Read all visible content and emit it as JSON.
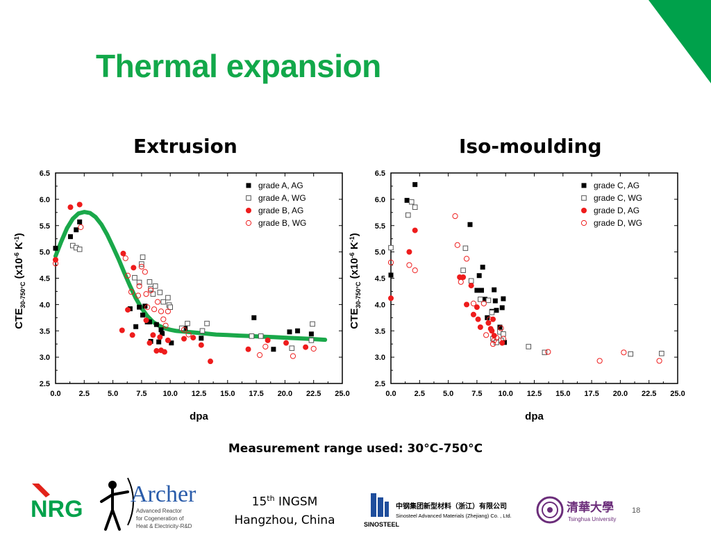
{
  "title": "Thermal expansion",
  "left_heading": "Extrusion",
  "right_heading": "Iso-moulding",
  "measurement_note": "Measurement range used: 30°C-750°C",
  "conference": {
    "line1_num": "15",
    "line1_sup": "th",
    "line1_rest": " INGSM",
    "line2": "Hangzhou, China"
  },
  "page_number": "18",
  "logos": {
    "nrg": "NRG",
    "archer": "Archer",
    "archer_tagline": [
      "Advanced Reactor",
      "for Cogeneration of",
      "Heat & Electricity-R&D"
    ],
    "sinosteel": "SINOSTEEL",
    "sinosteel_cn": "中钢集团新型材料（浙江）有限公司",
    "sinosteel_en": "Sinosteel Advanced Materials (Zhejiang) Co. , Ltd.",
    "tsinghua_cn": "清華大學",
    "tsinghua_en": "Tsinghua University"
  },
  "colors": {
    "title_green": "#12a84a",
    "corner_green": "#00a14b",
    "fit_green": "#1aa84a",
    "red": "#ee1c1c",
    "black": "#000000",
    "gray": "#555555"
  },
  "chart_data": [
    {
      "type": "scatter",
      "title": "Extrusion",
      "xlabel": "dpa",
      "ylabel": "CTE30-750°C (x10-6 K-1)",
      "xlim": [
        0,
        25
      ],
      "ylim": [
        2.5,
        6.5
      ],
      "xticks": [
        "0.0",
        "2.5",
        "5.0",
        "7.5",
        "10.0",
        "12.5",
        "15.0",
        "17.5",
        "20.0",
        "22.5",
        "25.0"
      ],
      "yticks": [
        "2.5",
        "3.0",
        "3.5",
        "4.0",
        "4.5",
        "5.0",
        "5.5",
        "6.0",
        "6.5"
      ],
      "legend_position": "top-right",
      "series": [
        {
          "name": "grade A, AG",
          "marker": "filled-square",
          "color": "#000000",
          "points": [
            [
              0,
              5.07
            ],
            [
              1.3,
              5.29
            ],
            [
              1.8,
              5.42
            ],
            [
              2.1,
              5.57
            ],
            [
              6.5,
              3.92
            ],
            [
              7.0,
              3.58
            ],
            [
              7.3,
              3.95
            ],
            [
              7.6,
              3.8
            ],
            [
              7.8,
              3.97
            ],
            [
              8.0,
              3.67
            ],
            [
              8.2,
              3.67
            ],
            [
              8.3,
              3.3
            ],
            [
              8.8,
              3.62
            ],
            [
              9.0,
              3.29
            ],
            [
              9.2,
              3.52
            ],
            [
              9.3,
              3.45
            ],
            [
              10.1,
              3.27
            ],
            [
              11.3,
              3.55
            ],
            [
              12.7,
              3.36
            ],
            [
              17.3,
              3.75
            ],
            [
              20.4,
              3.48
            ],
            [
              21.1,
              3.5
            ],
            [
              19.0,
              3.15
            ],
            [
              22.3,
              3.44
            ]
          ]
        },
        {
          "name": "grade A, WG",
          "marker": "open-square",
          "color": "#555555",
          "points": [
            [
              1.5,
              5.12
            ],
            [
              1.8,
              5.08
            ],
            [
              2.1,
              5.05
            ],
            [
              6.9,
              4.51
            ],
            [
              7.3,
              4.42
            ],
            [
              7.5,
              4.77
            ],
            [
              7.6,
              4.9
            ],
            [
              8.2,
              4.43
            ],
            [
              8.3,
              4.3
            ],
            [
              8.5,
              4.2
            ],
            [
              8.7,
              4.35
            ],
            [
              9.1,
              4.23
            ],
            [
              9.4,
              4.05
            ],
            [
              9.8,
              4.13
            ],
            [
              9.9,
              3.99
            ],
            [
              10.0,
              3.95
            ],
            [
              11.0,
              3.55
            ],
            [
              11.5,
              3.64
            ],
            [
              12.8,
              3.5
            ],
            [
              13.2,
              3.64
            ],
            [
              17.1,
              3.4
            ],
            [
              17.9,
              3.4
            ],
            [
              20.6,
              3.17
            ],
            [
              22.4,
              3.63
            ],
            [
              22.3,
              3.32
            ]
          ]
        },
        {
          "name": "grade B, AG",
          "marker": "filled-circle",
          "color": "#ee1c1c",
          "points": [
            [
              0,
              4.85
            ],
            [
              1.3,
              5.85
            ],
            [
              2.1,
              5.9
            ],
            [
              5.9,
              4.97
            ],
            [
              5.8,
              3.51
            ],
            [
              6.3,
              3.9
            ],
            [
              6.8,
              4.7
            ],
            [
              6.7,
              3.42
            ],
            [
              7.9,
              3.7
            ],
            [
              8.2,
              3.27
            ],
            [
              8.5,
              3.42
            ],
            [
              8.8,
              3.12
            ],
            [
              9.1,
              3.38
            ],
            [
              9.2,
              3.13
            ],
            [
              9.5,
              3.1
            ],
            [
              9.8,
              3.32
            ],
            [
              11.2,
              3.35
            ],
            [
              12.0,
              3.37
            ],
            [
              12.7,
              3.23
            ],
            [
              13.5,
              2.92
            ],
            [
              16.8,
              3.15
            ],
            [
              18.5,
              3.32
            ],
            [
              20.1,
              3.27
            ],
            [
              21.8,
              3.19
            ]
          ]
        },
        {
          "name": "grade B, WG",
          "marker": "open-circle",
          "color": "#ee1c1c",
          "points": [
            [
              0,
              4.78
            ],
            [
              2.2,
              5.47
            ],
            [
              6.1,
              4.88
            ],
            [
              6.3,
              4.55
            ],
            [
              6.6,
              4.24
            ],
            [
              7.2,
              4.17
            ],
            [
              7.3,
              4.35
            ],
            [
              7.5,
              4.72
            ],
            [
              7.8,
              4.62
            ],
            [
              7.9,
              4.2
            ],
            [
              8.0,
              3.95
            ],
            [
              8.3,
              4.27
            ],
            [
              8.6,
              3.91
            ],
            [
              8.9,
              4.05
            ],
            [
              9.2,
              3.87
            ],
            [
              9.4,
              3.72
            ],
            [
              9.6,
              3.6
            ],
            [
              9.8,
              3.87
            ],
            [
              11.2,
              3.52
            ],
            [
              11.6,
              3.43
            ],
            [
              17.8,
              3.04
            ],
            [
              18.3,
              3.2
            ],
            [
              20.7,
              3.02
            ],
            [
              22.5,
              3.16
            ]
          ]
        }
      ],
      "fit_curve": {
        "color": "#1aa84a",
        "x": [
          0,
          0.5,
          1,
          1.5,
          2,
          2.5,
          3,
          3.5,
          4,
          4.5,
          5,
          5.5,
          6,
          6.5,
          7,
          7.5,
          8,
          8.5,
          9,
          9.5,
          10,
          10.5,
          11,
          12,
          13,
          14,
          15,
          16,
          17,
          18,
          19,
          20,
          21,
          22,
          23.5
        ],
        "y": [
          4.92,
          5.2,
          5.45,
          5.63,
          5.73,
          5.76,
          5.74,
          5.66,
          5.52,
          5.33,
          5.1,
          4.86,
          4.6,
          4.35,
          4.12,
          3.93,
          3.78,
          3.67,
          3.6,
          3.55,
          3.52,
          3.5,
          3.49,
          3.47,
          3.45,
          3.43,
          3.42,
          3.41,
          3.4,
          3.39,
          3.38,
          3.37,
          3.36,
          3.35,
          3.33
        ]
      }
    },
    {
      "type": "scatter",
      "title": "Iso-moulding",
      "xlabel": "dpa",
      "ylabel": "CTE30-750°C (x10-6 K-1)",
      "xlim": [
        0,
        25
      ],
      "ylim": [
        2.5,
        6.5
      ],
      "xticks": [
        "0.0",
        "2.5",
        "5.0",
        "7.5",
        "10.0",
        "12.5",
        "15.0",
        "17.5",
        "20.0",
        "22.5",
        "25.0"
      ],
      "yticks": [
        "2.5",
        "3.0",
        "3.5",
        "4.0",
        "4.5",
        "5.0",
        "5.5",
        "6.0",
        "6.5"
      ],
      "legend_position": "top-right",
      "series": [
        {
          "name": "grade C, AG",
          "marker": "filled-square",
          "color": "#000000",
          "points": [
            [
              0,
              4.56
            ],
            [
              1.4,
              5.98
            ],
            [
              2.1,
              6.28
            ],
            [
              6.9,
              5.52
            ],
            [
              7.5,
              4.27
            ],
            [
              7.7,
              4.55
            ],
            [
              7.9,
              4.27
            ],
            [
              8.0,
              4.71
            ],
            [
              8.2,
              4.1
            ],
            [
              8.4,
              3.75
            ],
            [
              8.8,
              3.87
            ],
            [
              9.0,
              4.28
            ],
            [
              9.1,
              4.07
            ],
            [
              9.2,
              3.89
            ],
            [
              9.5,
              3.57
            ],
            [
              9.7,
              3.94
            ],
            [
              9.8,
              4.11
            ],
            [
              9.9,
              3.28
            ]
          ]
        },
        {
          "name": "grade C, WG",
          "marker": "open-square",
          "color": "#555555",
          "points": [
            [
              0,
              5.08
            ],
            [
              1.5,
              5.7
            ],
            [
              1.8,
              5.95
            ],
            [
              2.1,
              5.85
            ],
            [
              6.3,
              4.65
            ],
            [
              6.5,
              5.07
            ],
            [
              7.0,
              4.45
            ],
            [
              7.8,
              4.1
            ],
            [
              8.5,
              4.08
            ],
            [
              8.8,
              3.85
            ],
            [
              8.9,
              3.35
            ],
            [
              9.2,
              3.28
            ],
            [
              9.5,
              3.48
            ],
            [
              9.6,
              3.32
            ],
            [
              9.8,
              3.44
            ],
            [
              12.0,
              3.2
            ],
            [
              13.4,
              3.09
            ],
            [
              20.9,
              3.06
            ],
            [
              23.6,
              3.07
            ]
          ]
        },
        {
          "name": "grade D, AG",
          "marker": "filled-circle",
          "color": "#ee1c1c",
          "points": [
            [
              0,
              4.12
            ],
            [
              1.6,
              5.0
            ],
            [
              2.1,
              5.41
            ],
            [
              6.0,
              4.52
            ],
            [
              6.3,
              4.52
            ],
            [
              6.6,
              4.0
            ],
            [
              7.0,
              4.36
            ],
            [
              7.2,
              3.81
            ],
            [
              7.5,
              3.95
            ],
            [
              7.6,
              3.72
            ],
            [
              7.8,
              3.57
            ],
            [
              8.5,
              3.65
            ],
            [
              8.7,
              3.54
            ],
            [
              8.8,
              3.5
            ],
            [
              8.9,
              3.72
            ],
            [
              9.0,
              3.41
            ],
            [
              9.7,
              3.27
            ]
          ]
        },
        {
          "name": "grade D, WG",
          "marker": "open-circle",
          "color": "#ee1c1c",
          "points": [
            [
              0,
              4.8
            ],
            [
              1.6,
              4.75
            ],
            [
              2.1,
              4.65
            ],
            [
              5.6,
              5.68
            ],
            [
              5.8,
              5.13
            ],
            [
              6.1,
              4.43
            ],
            [
              6.6,
              4.87
            ],
            [
              7.2,
              4.02
            ],
            [
              8.1,
              4.02
            ],
            [
              8.3,
              3.42
            ],
            [
              8.6,
              3.72
            ],
            [
              8.9,
              3.25
            ],
            [
              9.0,
              3.32
            ],
            [
              9.2,
              3.37
            ],
            [
              9.6,
              3.55
            ],
            [
              9.8,
              3.35
            ],
            [
              13.7,
              3.1
            ],
            [
              18.2,
              2.93
            ],
            [
              20.3,
              3.09
            ],
            [
              23.4,
              2.93
            ]
          ]
        }
      ]
    }
  ]
}
